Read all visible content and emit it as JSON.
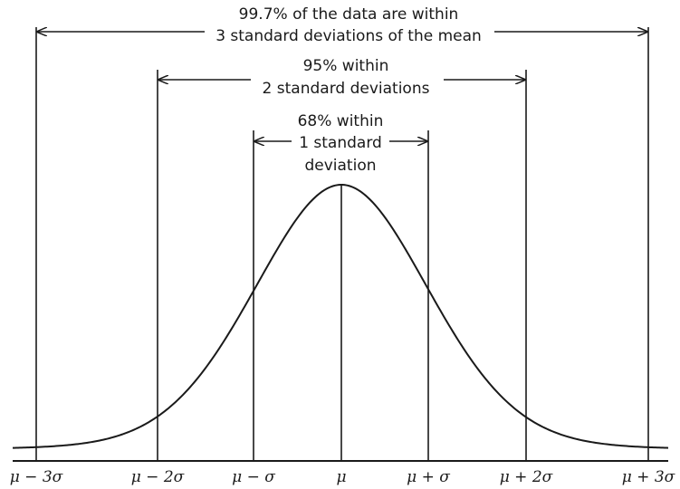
{
  "brackets": [
    {
      "key": "three_sd",
      "lines": [
        "99.7% of the data are within",
        "3 standard deviations of the mean"
      ]
    },
    {
      "key": "two_sd",
      "lines": [
        "95% within",
        "2 standard deviations"
      ]
    },
    {
      "key": "one_sd",
      "lines": [
        "68% within",
        "1 standard",
        "deviation"
      ]
    }
  ],
  "ticks": [
    "μ − 3σ",
    "μ − 2σ",
    "μ − σ",
    "μ",
    "μ + σ",
    "μ + 2σ",
    "μ + 3σ"
  ],
  "colors": {
    "ink": "#1a1a1a",
    "background": "#ffffff"
  }
}
